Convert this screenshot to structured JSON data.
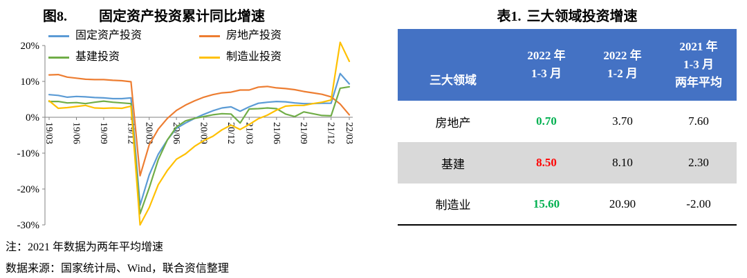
{
  "figure": {
    "label": "图8.",
    "title": "固定资产投资累计同比增速",
    "notes": [
      "注：2021 年数据为两年平均增速",
      "数据来源：国家统计局、Wind，联合资信整理"
    ]
  },
  "chart_data": {
    "type": "line",
    "title": "固定资产投资累计同比增速",
    "legend_position": "top",
    "grid": false,
    "ylim": [
      -30,
      20
    ],
    "y_ticks": [
      20,
      10,
      0,
      -10,
      -20,
      -30
    ],
    "y_tick_labels": [
      "20%",
      "10%",
      "0%",
      "-10%",
      "-20%",
      "-30%"
    ],
    "x": [
      "19/03",
      "19/04",
      "19/05",
      "19/06",
      "19/07",
      "19/08",
      "19/09",
      "19/10",
      "19/11",
      "19/12",
      "20/02",
      "20/03",
      "20/04",
      "20/05",
      "20/06",
      "20/07",
      "20/08",
      "20/09",
      "20/10",
      "20/11",
      "20/12",
      "21/02",
      "21/03",
      "21/04",
      "21/05",
      "21/06",
      "21/07",
      "21/08",
      "21/09",
      "21/10",
      "21/11",
      "21/12",
      "22/02",
      "22/03"
    ],
    "x_tick_labels": [
      "19/03",
      "19/06",
      "19/09",
      "19/12",
      "20/03",
      "20/06",
      "20/09",
      "20/12",
      "21/03",
      "21/06",
      "21/09",
      "21/12",
      "22/03"
    ],
    "series": [
      {
        "id": "fixed-asset-investment",
        "name": "固定资产投资",
        "color": "#5B9BD5",
        "values": [
          6.3,
          6.1,
          5.6,
          5.8,
          5.7,
          5.5,
          5.4,
          5.2,
          5.2,
          5.4,
          -24.5,
          -16.1,
          -10.3,
          -6.3,
          -3.1,
          -1.6,
          -0.3,
          0.8,
          1.8,
          2.6,
          2.9,
          1.7,
          2.9,
          3.9,
          4.2,
          4.4,
          4.3,
          4.0,
          3.8,
          3.8,
          3.9,
          3.9,
          12.2,
          9.3
        ]
      },
      {
        "id": "real-estate-investment",
        "name": "房地产投资",
        "color": "#ED7D31",
        "values": [
          11.8,
          11.9,
          11.2,
          10.9,
          10.6,
          10.5,
          10.5,
          10.3,
          10.2,
          9.9,
          -16.3,
          -7.7,
          -3.3,
          -0.3,
          1.9,
          3.4,
          4.6,
          5.6,
          6.3,
          6.8,
          7.0,
          7.6,
          7.6,
          8.4,
          8.6,
          8.2,
          8.0,
          7.7,
          7.2,
          6.8,
          6.4,
          5.7,
          3.7,
          0.7
        ]
      },
      {
        "id": "infrastructure-investment",
        "name": "基建投资",
        "color": "#70AD47",
        "values": [
          4.4,
          4.4,
          4.0,
          4.1,
          3.8,
          4.2,
          4.5,
          4.2,
          4.0,
          3.8,
          -26.9,
          -19.7,
          -11.8,
          -6.3,
          -2.7,
          -1.0,
          -0.3,
          0.2,
          0.7,
          1.0,
          0.9,
          -1.6,
          2.3,
          2.4,
          2.6,
          2.4,
          0.9,
          0.2,
          1.5,
          1.0,
          0.5,
          0.4,
          8.1,
          8.5
        ]
      },
      {
        "id": "manufacturing-investment",
        "name": "制造业投资",
        "color": "#FFC000",
        "values": [
          4.6,
          2.5,
          2.7,
          3.0,
          3.3,
          2.6,
          2.5,
          2.6,
          2.5,
          3.1,
          -30.0,
          -25.2,
          -18.8,
          -14.8,
          -11.7,
          -10.2,
          -8.1,
          -6.5,
          -5.3,
          -3.5,
          -2.2,
          -3.4,
          -2.0,
          -0.4,
          0.6,
          2.0,
          3.1,
          3.3,
          3.3,
          3.8,
          4.2,
          4.8,
          20.9,
          15.6
        ]
      }
    ]
  },
  "table": {
    "label": "表1.",
    "title": "三大领域投资增速",
    "header": {
      "corner": "三大领域",
      "cols": [
        [
          "2022 年",
          "1-3 月"
        ],
        [
          "2022 年",
          "1-2 月"
        ],
        [
          "2021 年",
          "1-3 月",
          "两年平均"
        ]
      ]
    },
    "rows": [
      {
        "name": "房地产",
        "shaded": false,
        "cells": [
          {
            "text": "0.70",
            "color": "#00B050"
          },
          {
            "text": "3.70",
            "color": ""
          },
          {
            "text": "7.60",
            "color": ""
          }
        ]
      },
      {
        "name": "基建",
        "shaded": true,
        "cells": [
          {
            "text": "8.50",
            "color": "#FF0000"
          },
          {
            "text": "8.10",
            "color": ""
          },
          {
            "text": "2.30",
            "color": ""
          }
        ]
      },
      {
        "name": "制造业",
        "shaded": false,
        "cells": [
          {
            "text": "15.60",
            "color": "#00B050"
          },
          {
            "text": "20.90",
            "color": ""
          },
          {
            "text": "-2.00",
            "color": ""
          }
        ]
      }
    ],
    "style": {
      "header_bg": "#4472C4",
      "header_text": "#FFFFFF",
      "shaded_row_bg": "#D9D9D9",
      "bottom_rule_color": "#000000"
    }
  }
}
